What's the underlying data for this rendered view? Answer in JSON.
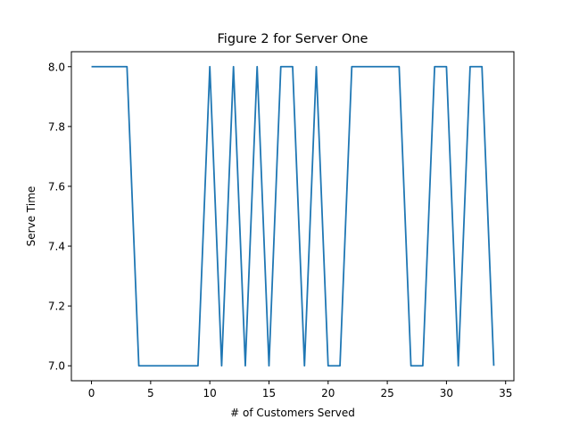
{
  "chart_data": {
    "type": "line",
    "title": "Figure 2 for Server One",
    "xlabel": "# of Customers Served",
    "ylabel": "Serve Time",
    "xlim": [
      -1.7,
      35.7
    ],
    "ylim": [
      6.95,
      8.05
    ],
    "grid": false,
    "xticks": [
      0,
      5,
      10,
      15,
      20,
      25,
      30,
      35
    ],
    "xtick_labels": [
      "0",
      "5",
      "10",
      "15",
      "20",
      "25",
      "30",
      "35"
    ],
    "yticks": [
      7.0,
      7.2,
      7.4,
      7.6,
      7.8,
      8.0
    ],
    "ytick_labels": [
      "7.0",
      "7.2",
      "7.4",
      "7.6",
      "7.8",
      "8.0"
    ],
    "series": [
      {
        "color": "#1f77b4",
        "x": [
          0,
          1,
          2,
          3,
          4,
          5,
          6,
          7,
          8,
          9,
          10,
          11,
          12,
          13,
          14,
          15,
          16,
          17,
          18,
          19,
          20,
          21,
          22,
          23,
          24,
          25,
          26,
          27,
          28,
          29,
          30,
          31,
          32,
          33,
          34
        ],
        "y": [
          8,
          8,
          8,
          8,
          7,
          7,
          7,
          7,
          7,
          7,
          8,
          7,
          8,
          7,
          8,
          7,
          8,
          8,
          7,
          8,
          7,
          7,
          8,
          8,
          8,
          8,
          8,
          7,
          7,
          8,
          8,
          7,
          8,
          8,
          7
        ]
      }
    ]
  }
}
